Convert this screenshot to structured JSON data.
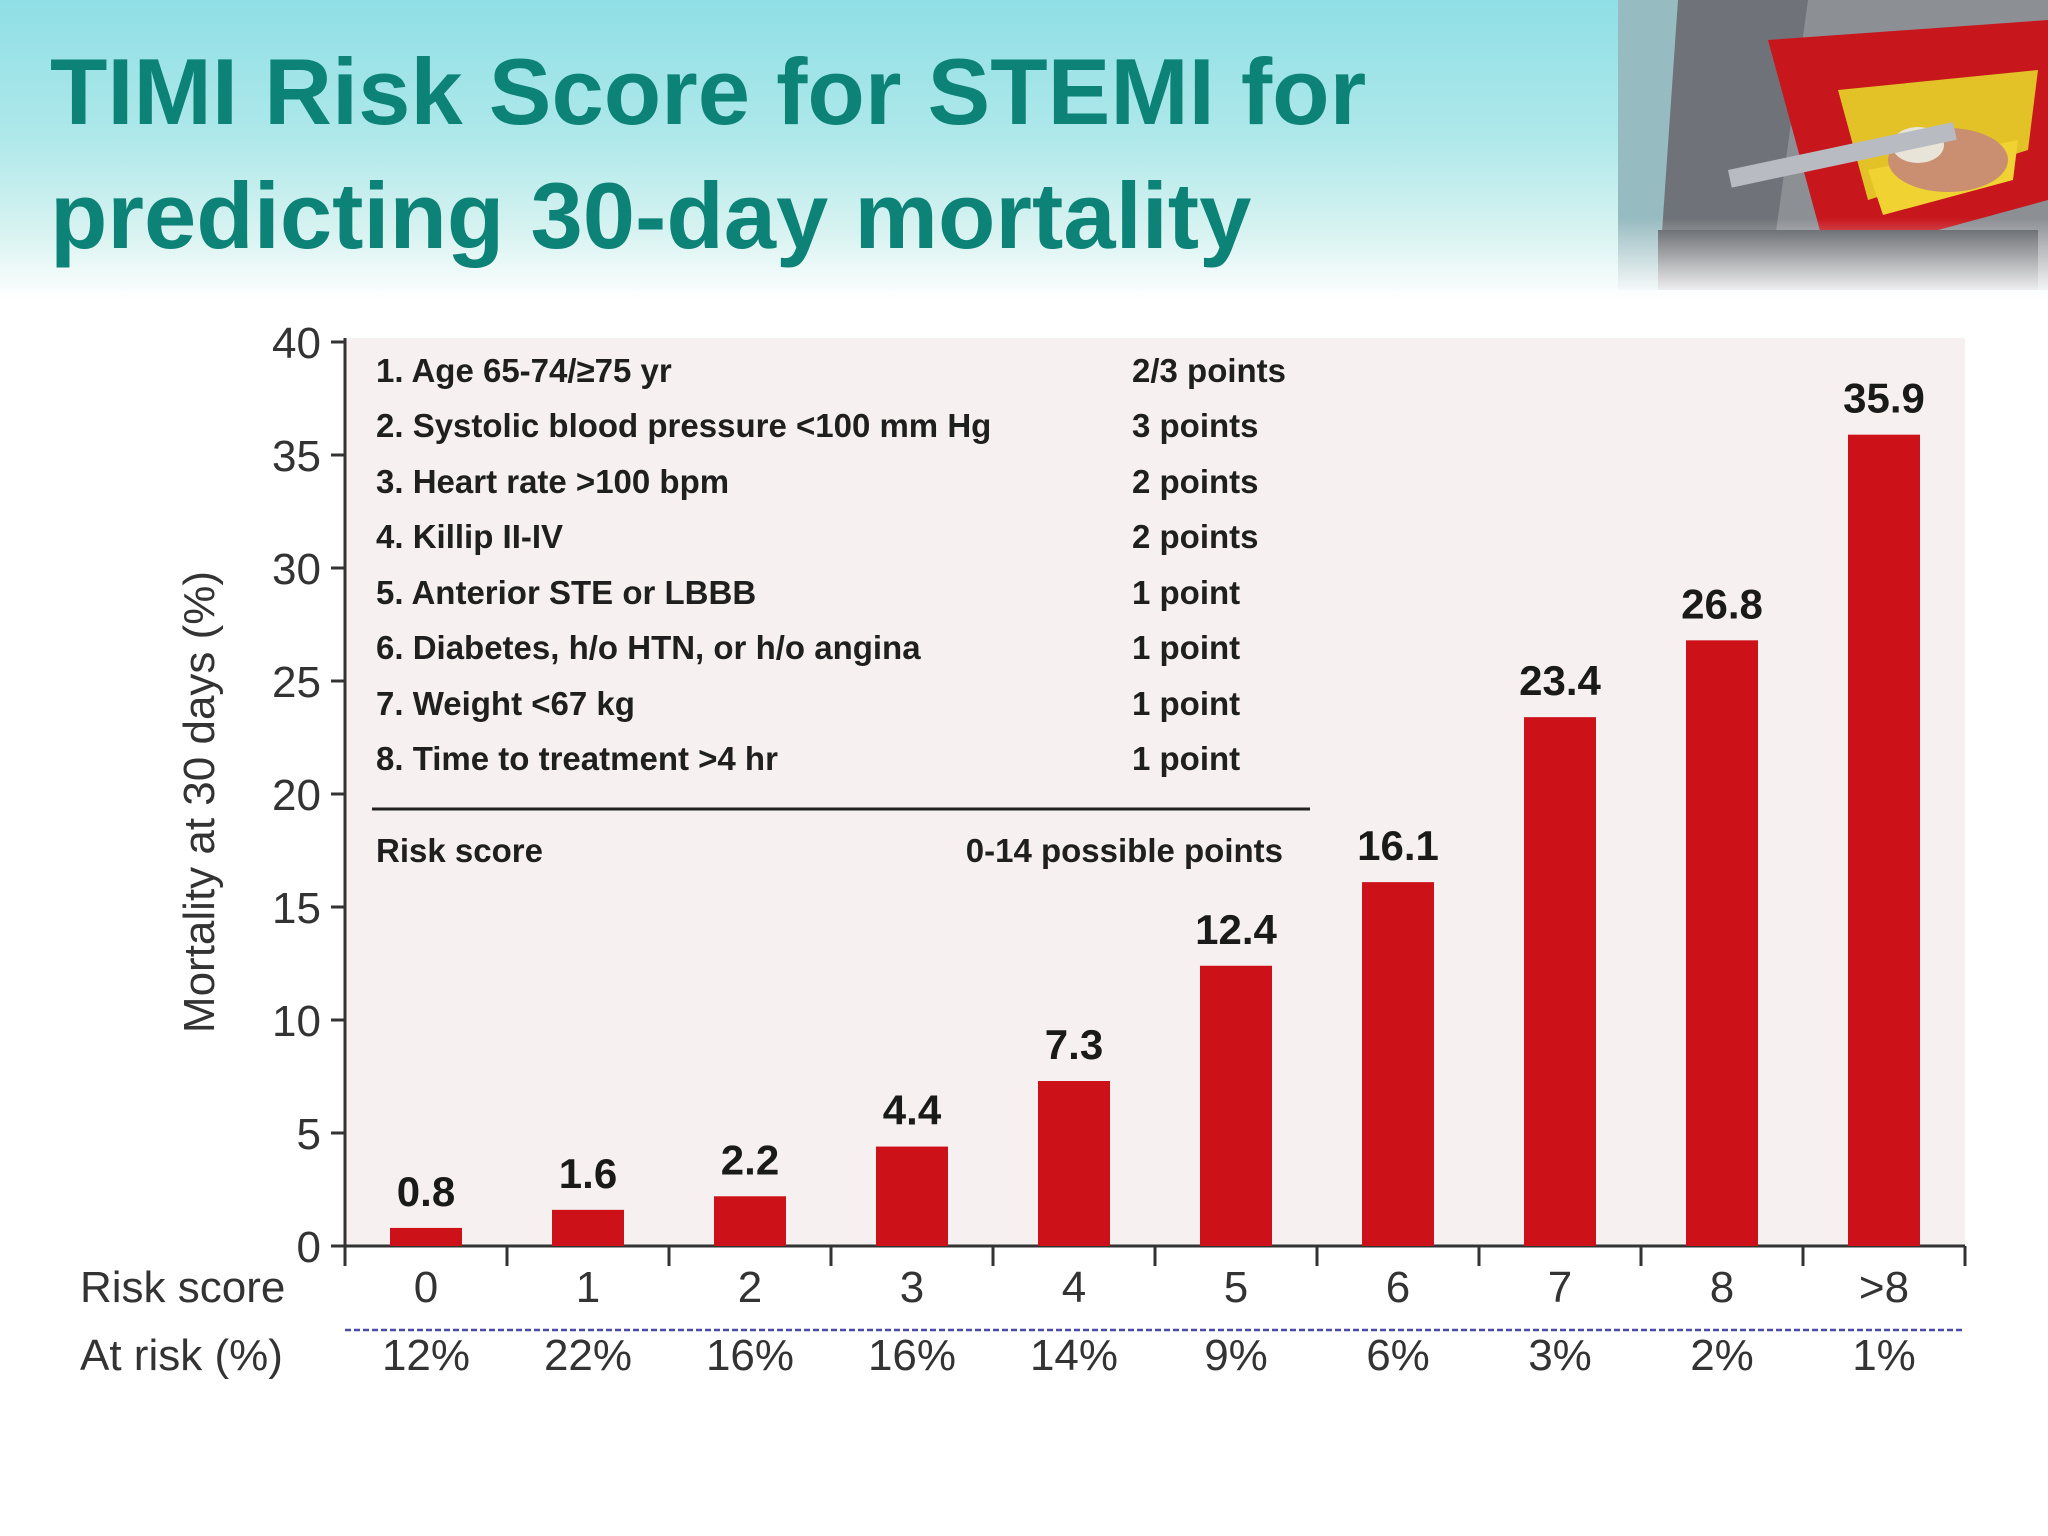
{
  "slide": {
    "title": "TIMI Risk Score for STEMI for predicting 30-day mortality"
  },
  "colors": {
    "title": "#0d8277",
    "bar": "#cc1119",
    "header_band": "#9fe3e8"
  },
  "chart_data": {
    "type": "bar",
    "title": "",
    "xlabel": "Risk score",
    "ylabel": "Mortality at 30 days (%)",
    "ylim": [
      0,
      40
    ],
    "yticks": [
      "0",
      "5",
      "10",
      "15",
      "20",
      "25",
      "30",
      "35",
      "40"
    ],
    "categories": [
      "0",
      "1",
      "2",
      "3",
      "4",
      "5",
      "6",
      "7",
      "8",
      ">8"
    ],
    "values": [
      0.8,
      1.6,
      2.2,
      4.4,
      7.3,
      12.4,
      16.1,
      23.4,
      26.8,
      35.9
    ],
    "value_labels": [
      "0.8",
      "1.6",
      "2.2",
      "4.4",
      "7.3",
      "12.4",
      "16.1",
      "23.4",
      "26.8",
      "35.9"
    ],
    "at_risk": {
      "label": "At risk (%)",
      "values": [
        "12%",
        "22%",
        "16%",
        "16%",
        "14%",
        "9%",
        "6%",
        "3%",
        "2%",
        "1%"
      ]
    },
    "grid": false,
    "legend_position": "top-left",
    "criteria": [
      {
        "label": "1. Age 65-74/≥75 yr",
        "points": "2/3 points"
      },
      {
        "label": "2. Systolic blood pressure <100 mm Hg",
        "points": "3 points"
      },
      {
        "label": "3. Heart rate >100 bpm",
        "points": "2 points"
      },
      {
        "label": "4. Killip II-IV",
        "points": "2 points"
      },
      {
        "label": "5. Anterior STE or LBBB",
        "points": "1 point"
      },
      {
        "label": "6. Diabetes, h/o HTN, or h/o angina",
        "points": "1 point"
      },
      {
        "label": "7. Weight <67 kg",
        "points": "1 point"
      },
      {
        "label": "8. Time to treatment >4 hr",
        "points": "1 point"
      }
    ],
    "total": {
      "label": "Risk score",
      "points": "0-14 possible points"
    }
  }
}
